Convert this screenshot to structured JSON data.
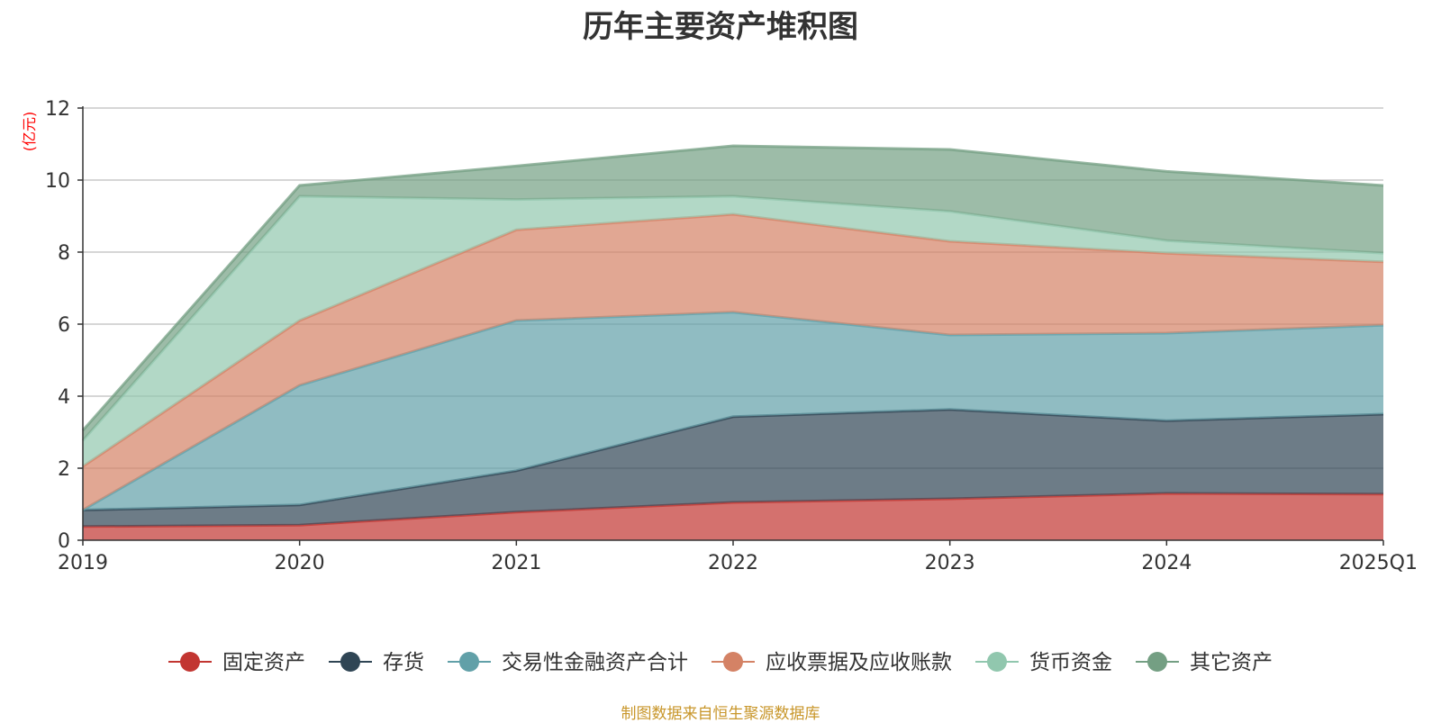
{
  "chart_data": {
    "type": "area",
    "stacked": true,
    "title": "历年主要资产堆积图",
    "unit_label": "(亿元)",
    "x": [
      "2019",
      "2020",
      "2021",
      "2022",
      "2023",
      "2024",
      "2025Q1"
    ],
    "ylim": [
      0,
      12
    ],
    "yticks": [
      "0",
      "2",
      "4",
      "6",
      "8",
      "10",
      "12"
    ],
    "grid": true,
    "legend_position": "bottom",
    "series": [
      {
        "name": "固定资产",
        "color": "#c23531",
        "values": [
          0.38,
          0.42,
          0.78,
          1.05,
          1.15,
          1.3,
          1.28
        ]
      },
      {
        "name": "存货",
        "color": "#2f4554",
        "values": [
          0.46,
          0.56,
          1.15,
          2.38,
          2.48,
          2.02,
          2.22
        ]
      },
      {
        "name": "交易性金融资产合计",
        "color": "#61a0a8",
        "values": [
          0.0,
          3.32,
          4.17,
          2.9,
          2.07,
          2.43,
          2.47
        ]
      },
      {
        "name": "应收票据及应收账款",
        "color": "#d48265",
        "values": [
          1.21,
          1.8,
          2.52,
          2.72,
          2.6,
          2.22,
          1.76
        ]
      },
      {
        "name": "货币资金",
        "color": "#91c7ae",
        "values": [
          0.72,
          3.45,
          0.84,
          0.5,
          0.83,
          0.35,
          0.24
        ]
      },
      {
        "name": "其它资产",
        "color": "#749f83",
        "values": [
          0.28,
          0.3,
          0.93,
          1.4,
          1.72,
          1.92,
          1.88
        ]
      }
    ]
  },
  "source_note": "制图数据来自恒生聚源数据库"
}
